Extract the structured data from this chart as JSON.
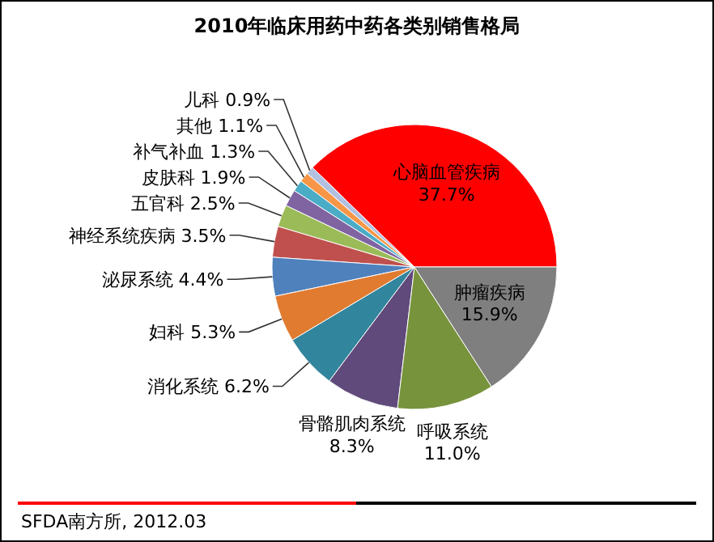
{
  "chart_data": {
    "type": "pie",
    "title": "2010年临床用药中药各类别销售格局",
    "categories": [
      "心脑血管疾病",
      "儿科",
      "其他",
      "补气补血",
      "皮肤科",
      "五官科",
      "神经系统疾病",
      "泌尿系统",
      "妇科",
      "消化系统",
      "骨骼肌肉系统",
      "呼吸系统",
      "肿瘤疾病"
    ],
    "values": [
      37.7,
      0.9,
      1.1,
      1.3,
      1.9,
      2.5,
      3.5,
      4.4,
      5.3,
      6.2,
      8.3,
      11.0,
      15.9
    ],
    "value_labels": [
      "37.7%",
      "0.9%",
      "1.1%",
      "1.3%",
      "1.9%",
      "2.5%",
      "3.5%",
      "4.4%",
      "5.3%",
      "6.2%",
      "8.3%",
      "11.0%",
      "15.9%"
    ],
    "colors": [
      "#ff0000",
      "#b3c1e0",
      "#f79646",
      "#4bacc6",
      "#8064a2",
      "#9bbb59",
      "#c0504d",
      "#4f81bd",
      "#e07b30",
      "#31859c",
      "#604a7b",
      "#77933c",
      "#7f7f7f"
    ],
    "annotations": [
      "SFDA南方所, 2012.03"
    ]
  }
}
